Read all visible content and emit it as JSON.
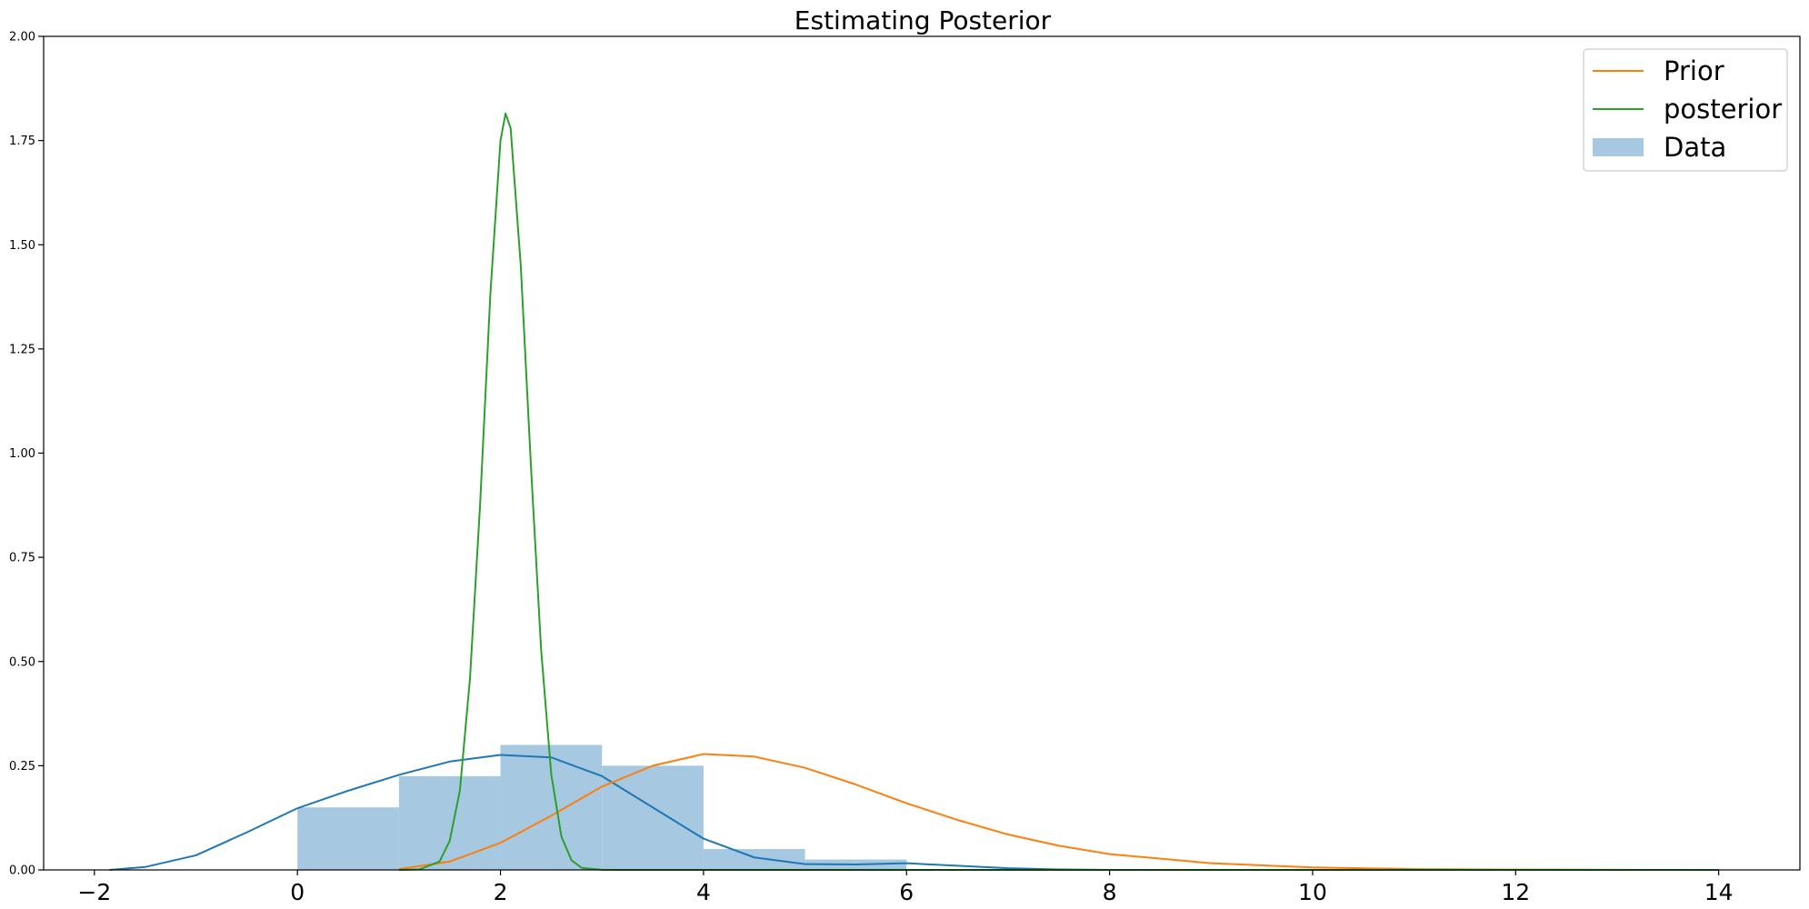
{
  "chart_data": {
    "type": "bar",
    "title": "Estimating Posterior",
    "xlabel": "",
    "ylabel": "",
    "xlim": [
      -2.5,
      14.8
    ],
    "ylim": [
      0,
      2.0
    ],
    "xticks": [
      -2,
      0,
      2,
      4,
      6,
      8,
      10,
      12,
      14
    ],
    "xtick_labels": [
      "−2",
      "0",
      "2",
      "4",
      "6",
      "8",
      "10",
      "12",
      "14"
    ],
    "yticks": [
      0,
      0.25,
      0.5,
      0.75,
      1.0,
      1.25,
      1.5,
      1.75,
      2.0
    ],
    "ytick_labels": [
      "0.00",
      "0.25",
      "0.50",
      "0.75",
      "1.00",
      "1.25",
      "1.50",
      "1.75",
      "2.00"
    ],
    "grid": false,
    "legend_position": "top-right",
    "histogram": {
      "name": "Data",
      "color": "#a6c8e0",
      "bins": [
        {
          "x0": 0,
          "x1": 1,
          "height": 0.15
        },
        {
          "x0": 1,
          "x1": 2,
          "height": 0.225
        },
        {
          "x0": 2,
          "x1": 3,
          "height": 0.3
        },
        {
          "x0": 3,
          "x1": 4,
          "height": 0.25
        },
        {
          "x0": 4,
          "x1": 5,
          "height": 0.05
        },
        {
          "x0": 5,
          "x1": 6,
          "height": 0.025
        }
      ]
    },
    "series": [
      {
        "name": "",
        "color": "#1f77b4",
        "x": [
          -1.85,
          -1.5,
          -1.0,
          -0.5,
          0.0,
          0.5,
          1.0,
          1.5,
          2.0,
          2.5,
          3.0,
          3.5,
          4.0,
          4.5,
          5.0,
          5.5,
          6.0,
          6.5,
          7.0,
          7.5,
          8.0
        ],
        "y": [
          0.0,
          0.007,
          0.035,
          0.09,
          0.148,
          0.19,
          0.228,
          0.26,
          0.276,
          0.27,
          0.225,
          0.15,
          0.075,
          0.03,
          0.014,
          0.013,
          0.016,
          0.01,
          0.004,
          0.001,
          0.0
        ]
      },
      {
        "name": "Prior",
        "color": "#ff7f0e",
        "x": [
          1.0,
          1.5,
          2.0,
          2.5,
          3.0,
          3.5,
          4.0,
          4.5,
          5.0,
          5.5,
          6.0,
          6.5,
          7.0,
          7.5,
          8.0,
          9.0,
          10.0,
          11.0,
          12.0,
          13.0,
          14.0
        ],
        "y": [
          0.002,
          0.02,
          0.065,
          0.13,
          0.2,
          0.25,
          0.278,
          0.272,
          0.245,
          0.205,
          0.16,
          0.12,
          0.085,
          0.058,
          0.038,
          0.016,
          0.006,
          0.002,
          0.0007,
          0.0002,
          0.0
        ]
      },
      {
        "name": "posterior",
        "color": "#2ca02c",
        "x": [
          1.0,
          1.2,
          1.4,
          1.5,
          1.6,
          1.7,
          1.8,
          1.9,
          2.0,
          2.05,
          2.1,
          2.2,
          2.3,
          2.4,
          2.5,
          2.6,
          2.7,
          2.8,
          3.0,
          3.2,
          3.5,
          4.0,
          6.0,
          10.0,
          14.0
        ],
        "y": [
          0.0,
          0.001,
          0.02,
          0.07,
          0.19,
          0.46,
          0.88,
          1.38,
          1.75,
          1.815,
          1.78,
          1.45,
          0.97,
          0.53,
          0.23,
          0.08,
          0.023,
          0.005,
          0.0002,
          0.0,
          0.0,
          0.0,
          0.0,
          0.0,
          0.0
        ]
      }
    ],
    "legend": [
      {
        "label": "Prior",
        "kind": "line",
        "color": "#ff7f0e"
      },
      {
        "label": "posterior",
        "kind": "line",
        "color": "#2ca02c"
      },
      {
        "label": "Data",
        "kind": "patch",
        "color": "#a6c8e0"
      }
    ]
  }
}
